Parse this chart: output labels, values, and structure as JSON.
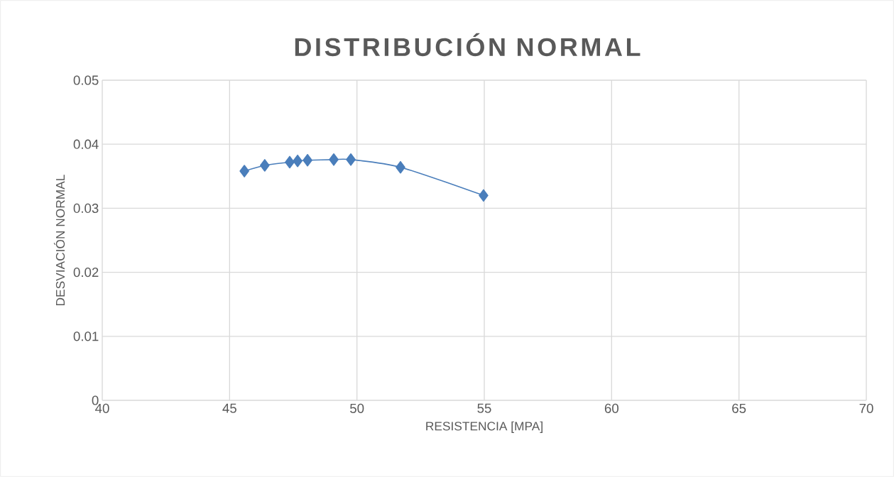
{
  "chart_data": {
    "type": "line",
    "title": "DISTRIBUCIÓN NORMAL",
    "xlabel": "RESISTENCIA [MPA]",
    "ylabel": "DESVIACIÓN NORMAL",
    "series": [
      {
        "color": "#4a7ebb",
        "x": [
          45.58,
          46.38,
          47.36,
          47.67,
          48.06,
          49.09,
          49.76,
          51.71,
          54.97
        ],
        "values": [
          0.0358,
          0.0367,
          0.0372,
          0.0374,
          0.0375,
          0.0376,
          0.0376,
          0.0364,
          0.032
        ]
      }
    ],
    "xlim": [
      40,
      70
    ],
    "xticks": [
      40,
      45,
      50,
      55,
      60,
      65,
      70
    ],
    "ylim": [
      0,
      0.05
    ],
    "yticks": [
      0,
      0.01,
      0.02,
      0.03,
      0.04,
      0.05
    ],
    "grid": true,
    "marker": "diamond",
    "line_style": "solid"
  }
}
